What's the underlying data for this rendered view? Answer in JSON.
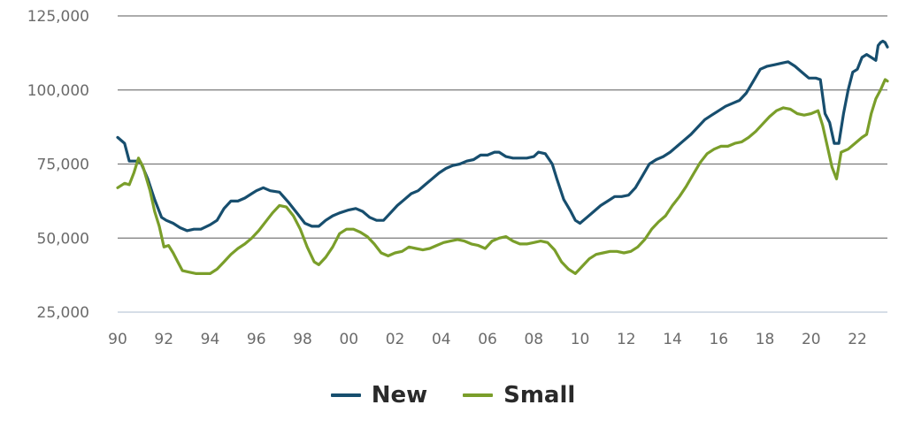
{
  "chart_data": {
    "type": "line",
    "title": "",
    "xlabel": "",
    "ylabel": "",
    "xlim": [
      1990,
      2023.3
    ],
    "ylim": [
      25000,
      125000
    ],
    "y_ticks": [
      25000,
      50000,
      75000,
      100000,
      125000
    ],
    "y_tick_labels": [
      "25,000",
      "50,000",
      "75,000",
      "100,000",
      "125,000"
    ],
    "x_ticks": [
      1990,
      1992,
      1994,
      1996,
      1998,
      2000,
      2002,
      2004,
      2006,
      2008,
      2010,
      2012,
      2014,
      2016,
      2018,
      2020,
      2022
    ],
    "x_tick_labels": [
      "90",
      "92",
      "94",
      "96",
      "98",
      "00",
      "02",
      "04",
      "06",
      "08",
      "10",
      "12",
      "14",
      "16",
      "18",
      "20",
      "22"
    ],
    "grid": "horizontal",
    "legend_position": "bottom-center",
    "series": [
      {
        "name": "New",
        "color": "#174e6e",
        "points": [
          [
            1990.0,
            84000
          ],
          [
            1990.3,
            82000
          ],
          [
            1990.5,
            76000
          ],
          [
            1990.8,
            76000
          ],
          [
            1991.0,
            75500
          ],
          [
            1991.3,
            70000
          ],
          [
            1991.6,
            63000
          ],
          [
            1991.9,
            57000
          ],
          [
            1992.1,
            56000
          ],
          [
            1992.4,
            55000
          ],
          [
            1992.7,
            53500
          ],
          [
            1993.0,
            52500
          ],
          [
            1993.3,
            53000
          ],
          [
            1993.6,
            53000
          ],
          [
            1994.0,
            54500
          ],
          [
            1994.3,
            56000
          ],
          [
            1994.6,
            60000
          ],
          [
            1994.9,
            62500
          ],
          [
            1995.2,
            62500
          ],
          [
            1995.5,
            63500
          ],
          [
            1995.8,
            65000
          ],
          [
            1996.0,
            66000
          ],
          [
            1996.3,
            67000
          ],
          [
            1996.6,
            66000
          ],
          [
            1997.0,
            65500
          ],
          [
            1997.4,
            62000
          ],
          [
            1997.8,
            58000
          ],
          [
            1998.1,
            55000
          ],
          [
            1998.4,
            54000
          ],
          [
            1998.7,
            54000
          ],
          [
            1999.0,
            56000
          ],
          [
            1999.3,
            57500
          ],
          [
            1999.6,
            58500
          ],
          [
            2000.0,
            59500
          ],
          [
            2000.3,
            60000
          ],
          [
            2000.6,
            59000
          ],
          [
            2000.9,
            57000
          ],
          [
            2001.2,
            56000
          ],
          [
            2001.5,
            56000
          ],
          [
            2001.8,
            58500
          ],
          [
            2002.1,
            61000
          ],
          [
            2002.4,
            63000
          ],
          [
            2002.7,
            65000
          ],
          [
            2003.0,
            66000
          ],
          [
            2003.3,
            68000
          ],
          [
            2003.6,
            70000
          ],
          [
            2003.9,
            72000
          ],
          [
            2004.2,
            73500
          ],
          [
            2004.5,
            74500
          ],
          [
            2004.8,
            75000
          ],
          [
            2005.1,
            76000
          ],
          [
            2005.4,
            76500
          ],
          [
            2005.7,
            78000
          ],
          [
            2006.0,
            78000
          ],
          [
            2006.3,
            79000
          ],
          [
            2006.5,
            79000
          ],
          [
            2006.8,
            77500
          ],
          [
            2007.1,
            77000
          ],
          [
            2007.4,
            77000
          ],
          [
            2007.7,
            77000
          ],
          [
            2008.0,
            77500
          ],
          [
            2008.2,
            79000
          ],
          [
            2008.5,
            78500
          ],
          [
            2008.8,
            75000
          ],
          [
            2009.0,
            70000
          ],
          [
            2009.3,
            63000
          ],
          [
            2009.6,
            59000
          ],
          [
            2009.8,
            56000
          ],
          [
            2010.0,
            55000
          ],
          [
            2010.3,
            57000
          ],
          [
            2010.6,
            59000
          ],
          [
            2010.9,
            61000
          ],
          [
            2011.2,
            62500
          ],
          [
            2011.5,
            64000
          ],
          [
            2011.8,
            64000
          ],
          [
            2012.1,
            64500
          ],
          [
            2012.4,
            67000
          ],
          [
            2012.7,
            71000
          ],
          [
            2013.0,
            75000
          ],
          [
            2013.3,
            76500
          ],
          [
            2013.6,
            77500
          ],
          [
            2013.9,
            79000
          ],
          [
            2014.2,
            81000
          ],
          [
            2014.5,
            83000
          ],
          [
            2014.8,
            85000
          ],
          [
            2015.1,
            87500
          ],
          [
            2015.4,
            90000
          ],
          [
            2015.7,
            91500
          ],
          [
            2016.0,
            93000
          ],
          [
            2016.3,
            94500
          ],
          [
            2016.6,
            95500
          ],
          [
            2016.9,
            96500
          ],
          [
            2017.2,
            99000
          ],
          [
            2017.5,
            103000
          ],
          [
            2017.8,
            107000
          ],
          [
            2018.1,
            108000
          ],
          [
            2018.4,
            108500
          ],
          [
            2018.7,
            109000
          ],
          [
            2019.0,
            109500
          ],
          [
            2019.3,
            108000
          ],
          [
            2019.6,
            106000
          ],
          [
            2019.9,
            104000
          ],
          [
            2020.2,
            104000
          ],
          [
            2020.4,
            103500
          ],
          [
            2020.6,
            92000
          ],
          [
            2020.8,
            89000
          ],
          [
            2021.0,
            82000
          ],
          [
            2021.2,
            82000
          ],
          [
            2021.4,
            92000
          ],
          [
            2021.6,
            100000
          ],
          [
            2021.8,
            106000
          ],
          [
            2022.0,
            107000
          ],
          [
            2022.2,
            111000
          ],
          [
            2022.4,
            112000
          ],
          [
            2022.6,
            111000
          ],
          [
            2022.8,
            110000
          ],
          [
            2022.9,
            115000
          ],
          [
            2023.0,
            116000
          ],
          [
            2023.1,
            116500
          ],
          [
            2023.2,
            116000
          ],
          [
            2023.3,
            114500
          ]
        ]
      },
      {
        "name": "Small",
        "color": "#7a9e2a",
        "points": [
          [
            1990.0,
            67000
          ],
          [
            1990.3,
            68500
          ],
          [
            1990.5,
            68000
          ],
          [
            1990.7,
            72000
          ],
          [
            1990.9,
            77000
          ],
          [
            1991.1,
            74000
          ],
          [
            1991.4,
            66000
          ],
          [
            1991.6,
            59000
          ],
          [
            1991.8,
            54000
          ],
          [
            1992.0,
            47000
          ],
          [
            1992.2,
            47500
          ],
          [
            1992.4,
            45000
          ],
          [
            1992.6,
            42000
          ],
          [
            1992.8,
            39000
          ],
          [
            1993.1,
            38500
          ],
          [
            1993.4,
            38000
          ],
          [
            1993.7,
            38000
          ],
          [
            1994.0,
            38000
          ],
          [
            1994.3,
            39500
          ],
          [
            1994.6,
            42000
          ],
          [
            1994.9,
            44500
          ],
          [
            1995.2,
            46500
          ],
          [
            1995.5,
            48000
          ],
          [
            1995.8,
            50000
          ],
          [
            1996.1,
            52500
          ],
          [
            1996.4,
            55500
          ],
          [
            1996.7,
            58500
          ],
          [
            1997.0,
            61000
          ],
          [
            1997.3,
            60500
          ],
          [
            1997.6,
            57500
          ],
          [
            1997.9,
            53000
          ],
          [
            1998.2,
            47000
          ],
          [
            1998.5,
            42000
          ],
          [
            1998.7,
            41000
          ],
          [
            1999.0,
            43500
          ],
          [
            1999.3,
            47000
          ],
          [
            1999.6,
            51500
          ],
          [
            1999.9,
            53000
          ],
          [
            2000.2,
            53000
          ],
          [
            2000.5,
            52000
          ],
          [
            2000.8,
            50500
          ],
          [
            2001.1,
            48000
          ],
          [
            2001.4,
            45000
          ],
          [
            2001.7,
            44000
          ],
          [
            2002.0,
            45000
          ],
          [
            2002.3,
            45500
          ],
          [
            2002.6,
            47000
          ],
          [
            2002.9,
            46500
          ],
          [
            2003.2,
            46000
          ],
          [
            2003.5,
            46500
          ],
          [
            2003.8,
            47500
          ],
          [
            2004.1,
            48500
          ],
          [
            2004.4,
            49000
          ],
          [
            2004.7,
            49500
          ],
          [
            2005.0,
            49000
          ],
          [
            2005.3,
            48000
          ],
          [
            2005.6,
            47500
          ],
          [
            2005.9,
            46500
          ],
          [
            2006.2,
            49000
          ],
          [
            2006.5,
            50000
          ],
          [
            2006.8,
            50500
          ],
          [
            2007.1,
            49000
          ],
          [
            2007.4,
            48000
          ],
          [
            2007.7,
            48000
          ],
          [
            2008.0,
            48500
          ],
          [
            2008.3,
            49000
          ],
          [
            2008.6,
            48500
          ],
          [
            2008.9,
            46000
          ],
          [
            2009.2,
            42000
          ],
          [
            2009.5,
            39500
          ],
          [
            2009.8,
            38000
          ],
          [
            2010.1,
            40500
          ],
          [
            2010.4,
            43000
          ],
          [
            2010.7,
            44500
          ],
          [
            2011.0,
            45000
          ],
          [
            2011.3,
            45500
          ],
          [
            2011.6,
            45500
          ],
          [
            2011.9,
            45000
          ],
          [
            2012.2,
            45500
          ],
          [
            2012.5,
            47000
          ],
          [
            2012.8,
            49500
          ],
          [
            2013.1,
            53000
          ],
          [
            2013.4,
            55500
          ],
          [
            2013.7,
            57500
          ],
          [
            2014.0,
            61000
          ],
          [
            2014.3,
            64000
          ],
          [
            2014.6,
            67500
          ],
          [
            2014.9,
            71500
          ],
          [
            2015.2,
            75500
          ],
          [
            2015.5,
            78500
          ],
          [
            2015.8,
            80000
          ],
          [
            2016.1,
            81000
          ],
          [
            2016.4,
            81000
          ],
          [
            2016.7,
            82000
          ],
          [
            2017.0,
            82500
          ],
          [
            2017.3,
            84000
          ],
          [
            2017.6,
            86000
          ],
          [
            2017.9,
            88500
          ],
          [
            2018.2,
            91000
          ],
          [
            2018.5,
            93000
          ],
          [
            2018.8,
            94000
          ],
          [
            2019.1,
            93500
          ],
          [
            2019.4,
            92000
          ],
          [
            2019.7,
            91500
          ],
          [
            2020.0,
            92000
          ],
          [
            2020.3,
            93000
          ],
          [
            2020.5,
            88000
          ],
          [
            2020.7,
            81000
          ],
          [
            2020.9,
            74000
          ],
          [
            2021.1,
            70000
          ],
          [
            2021.3,
            79000
          ],
          [
            2021.6,
            80000
          ],
          [
            2021.9,
            82000
          ],
          [
            2022.2,
            84000
          ],
          [
            2022.4,
            85000
          ],
          [
            2022.6,
            92000
          ],
          [
            2022.8,
            97000
          ],
          [
            2023.0,
            100000
          ],
          [
            2023.2,
            103500
          ],
          [
            2023.3,
            103000
          ]
        ]
      }
    ]
  }
}
